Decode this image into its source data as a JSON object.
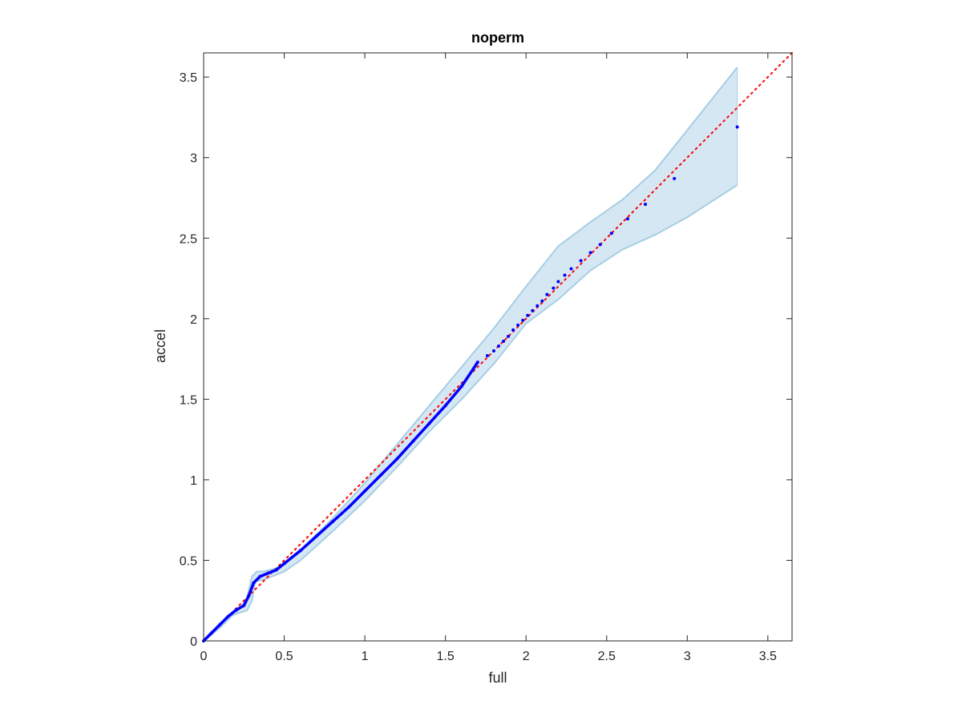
{
  "chart_data": {
    "type": "scatter",
    "title": "noperm",
    "xlabel": "full",
    "ylabel": "accel",
    "xlim": [
      0,
      3.65
    ],
    "ylim": [
      0,
      3.65
    ],
    "xticks": [
      "0",
      "0.5",
      "1",
      "1.5",
      "2",
      "2.5",
      "3",
      "3.5"
    ],
    "yticks": [
      "0",
      "0.5",
      "1",
      "1.5",
      "2",
      "2.5",
      "3",
      "3.5"
    ],
    "grid": false,
    "box": true,
    "reference_line": {
      "style": "dotted",
      "color": "#ff0000",
      "from": [
        0,
        0
      ],
      "to": [
        3.65,
        3.65
      ]
    },
    "band": {
      "color": "#a6cee3",
      "fill_color": "#d6e7f4",
      "upper": [
        [
          0,
          0
        ],
        [
          0.1,
          0.09
        ],
        [
          0.18,
          0.18
        ],
        [
          0.24,
          0.22
        ],
        [
          0.27,
          0.27
        ],
        [
          0.3,
          0.4
        ],
        [
          0.33,
          0.43
        ],
        [
          0.37,
          0.43
        ],
        [
          0.45,
          0.45
        ],
        [
          0.5,
          0.48
        ],
        [
          0.6,
          0.56
        ],
        [
          0.8,
          0.76
        ],
        [
          1,
          0.98
        ],
        [
          1.2,
          1.22
        ],
        [
          1.4,
          1.46
        ],
        [
          1.6,
          1.7
        ],
        [
          1.8,
          1.94
        ],
        [
          2,
          2.2
        ],
        [
          2.2,
          2.45
        ],
        [
          2.4,
          2.6
        ],
        [
          2.6,
          2.74
        ],
        [
          2.8,
          2.92
        ],
        [
          3.0,
          3.17
        ],
        [
          3.31,
          3.56
        ]
      ],
      "lower": [
        [
          0,
          0
        ],
        [
          0.1,
          0.08
        ],
        [
          0.18,
          0.16
        ],
        [
          0.24,
          0.18
        ],
        [
          0.27,
          0.19
        ],
        [
          0.3,
          0.25
        ],
        [
          0.32,
          0.37
        ],
        [
          0.37,
          0.38
        ],
        [
          0.45,
          0.41
        ],
        [
          0.5,
          0.43
        ],
        [
          0.6,
          0.5
        ],
        [
          0.8,
          0.68
        ],
        [
          1,
          0.87
        ],
        [
          1.2,
          1.08
        ],
        [
          1.4,
          1.3
        ],
        [
          1.6,
          1.5
        ],
        [
          1.8,
          1.72
        ],
        [
          2,
          1.97
        ],
        [
          2.2,
          2.12
        ],
        [
          2.4,
          2.3
        ],
        [
          2.6,
          2.43
        ],
        [
          2.8,
          2.52
        ],
        [
          3.0,
          2.63
        ],
        [
          3.31,
          2.83
        ]
      ]
    },
    "series": [
      {
        "color": "#0000ff",
        "points": [
          [
            0,
            0
          ],
          [
            0.05,
            0.05
          ],
          [
            0.1,
            0.1
          ],
          [
            0.15,
            0.15
          ],
          [
            0.2,
            0.19
          ],
          [
            0.25,
            0.22
          ],
          [
            0.28,
            0.28
          ],
          [
            0.31,
            0.36
          ],
          [
            0.35,
            0.4
          ],
          [
            0.4,
            0.42
          ],
          [
            0.45,
            0.44
          ],
          [
            0.5,
            0.48
          ],
          [
            0.6,
            0.56
          ],
          [
            0.7,
            0.65
          ],
          [
            0.8,
            0.74
          ],
          [
            0.9,
            0.83
          ],
          [
            1.0,
            0.93
          ],
          [
            1.1,
            1.03
          ],
          [
            1.2,
            1.13
          ],
          [
            1.3,
            1.24
          ],
          [
            1.4,
            1.35
          ],
          [
            1.5,
            1.46
          ],
          [
            1.6,
            1.58
          ],
          [
            1.7,
            1.73
          ],
          [
            1.76,
            1.77
          ],
          [
            1.8,
            1.8
          ],
          [
            1.83,
            1.83
          ],
          [
            1.86,
            1.86
          ],
          [
            1.89,
            1.89
          ],
          [
            1.92,
            1.93
          ],
          [
            1.95,
            1.96
          ],
          [
            1.98,
            1.99
          ],
          [
            2.01,
            2.02
          ],
          [
            2.04,
            2.05
          ],
          [
            2.07,
            2.08
          ],
          [
            2.1,
            2.11
          ],
          [
            2.13,
            2.15
          ],
          [
            2.17,
            2.19
          ],
          [
            2.2,
            2.23
          ],
          [
            2.24,
            2.27
          ],
          [
            2.28,
            2.31
          ],
          [
            2.34,
            2.36
          ],
          [
            2.4,
            2.41
          ],
          [
            2.46,
            2.46
          ],
          [
            2.53,
            2.53
          ],
          [
            2.63,
            2.62
          ],
          [
            2.74,
            2.71
          ],
          [
            2.92,
            2.87
          ],
          [
            3.31,
            3.19
          ]
        ]
      }
    ]
  }
}
